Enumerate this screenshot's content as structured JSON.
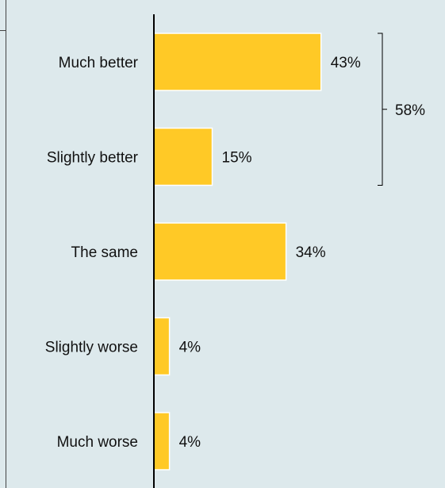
{
  "chart_data": {
    "type": "bar",
    "orientation": "horizontal",
    "categories": [
      "Much better",
      "Slightly better",
      "The same",
      "Slightly worse",
      "Much worse"
    ],
    "values": [
      43,
      15,
      34,
      4,
      4
    ],
    "value_labels": [
      "43%",
      "15%",
      "34%",
      "4%",
      "4%"
    ],
    "xlim": [
      0,
      100
    ],
    "grid": false,
    "bracket": {
      "categories": [
        "Much better",
        "Slightly better"
      ],
      "label": "58%"
    },
    "colors": {
      "bar": "#ffc926",
      "bar_edge": "#ffffff",
      "axis": "#000000",
      "background": "#dde9ec"
    }
  }
}
